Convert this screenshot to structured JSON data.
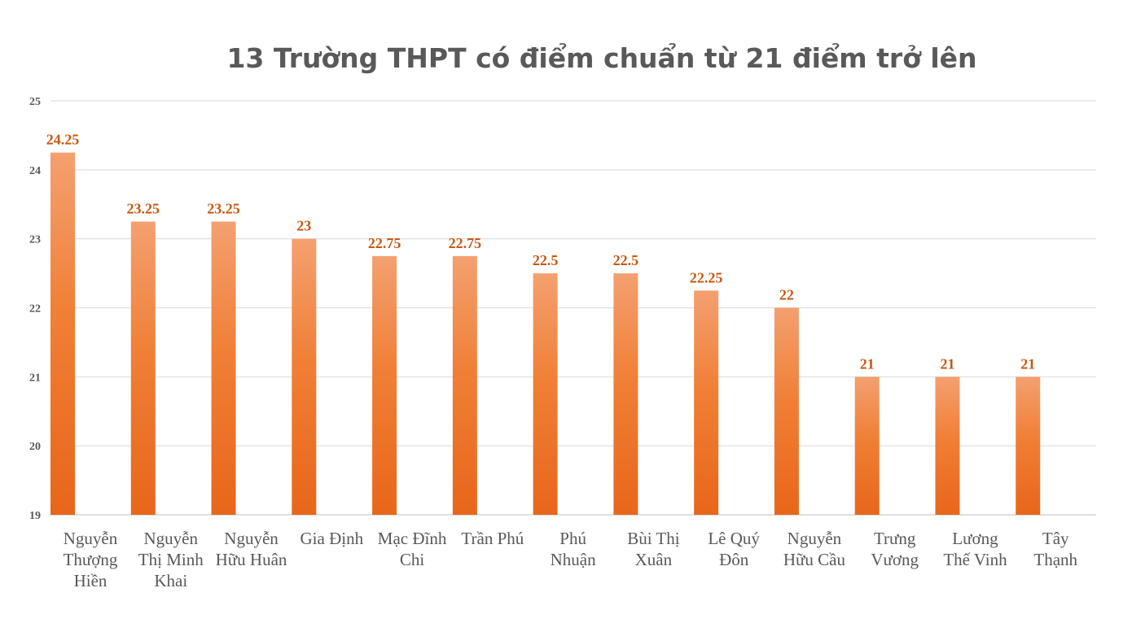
{
  "chart_data": {
    "type": "bar",
    "title": "13 Trường THPT có điểm chuẩn từ 21 điểm trở lên",
    "xlabel": "",
    "ylabel": "",
    "ylim": [
      19,
      25
    ],
    "yticks": [
      19,
      20,
      21,
      22,
      23,
      24,
      25
    ],
    "grid": true,
    "legend": "none",
    "bar_color_top": "#f4a070",
    "bar_color_bottom": "#e8661a",
    "label_color": "#c65911",
    "categories": [
      [
        "Nguyễn",
        "Thượng",
        "Hiền"
      ],
      [
        "Nguyễn",
        "Thị Minh",
        "Khai"
      ],
      [
        "Nguyễn",
        "Hữu Huân"
      ],
      [
        "Gia Định"
      ],
      [
        "Mạc Đĩnh",
        "Chi"
      ],
      [
        "Trần Phú"
      ],
      [
        "Phú",
        "Nhuận"
      ],
      [
        "Bùi Thị",
        "Xuân"
      ],
      [
        "Lê Quý",
        "Đôn"
      ],
      [
        "Nguyễn",
        "Hữu Cầu"
      ],
      [
        "Trưng",
        "Vương"
      ],
      [
        "Lương",
        "Thế Vinh"
      ],
      [
        "Tây",
        "Thạnh"
      ]
    ],
    "values": [
      24.25,
      23.25,
      23.25,
      23,
      22.75,
      22.75,
      22.5,
      22.5,
      22.25,
      22,
      21,
      21,
      21
    ],
    "data_labels": [
      "24.25",
      "23.25",
      "23.25",
      "23",
      "22.75",
      "22.75",
      "22.5",
      "22.5",
      "22.25",
      "22",
      "21",
      "21",
      "21"
    ]
  }
}
